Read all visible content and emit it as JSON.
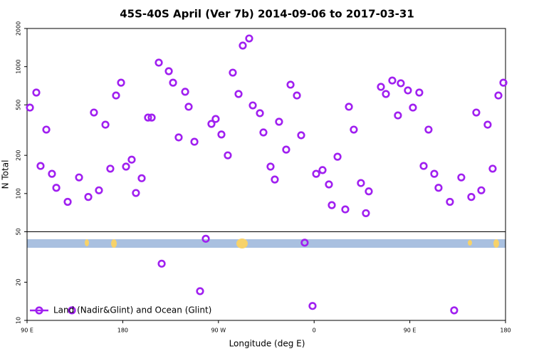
{
  "chart_data": {
    "type": "scatter",
    "title": "45S-40S April (Ver 7b)   2014-09-06 to 2017-03-31",
    "x_label": "Longitude (deg E)",
    "y_label": "N Total",
    "log_y": true,
    "xlim": [
      90,
      540
    ],
    "ylim": [
      10,
      2000
    ],
    "xticks": [
      {
        "value": 90,
        "label": "90 E"
      },
      180,
      {
        "value": 270,
        "label": "90 W"
      },
      {
        "value": 360,
        "label": "0"
      },
      {
        "value": 450,
        "label": "90 E"
      },
      {
        "value": 540,
        "label": "180"
      }
    ],
    "yticks": [
      10,
      20,
      50,
      100,
      200,
      500,
      1000,
      2000
    ],
    "legend": "bottom-left",
    "x": [
      92.7,
      98.7,
      102.7,
      108.1,
      113.4,
      117.5,
      128.2,
      132.2,
      138.9,
      147.6,
      152.9,
      157.6,
      163.7,
      168.3,
      173.7,
      178.4,
      183.1,
      188.4,
      192.4,
      197.8,
      203.8,
      207.2,
      213.9,
      216.6,
      223.3,
      227.3,
      232.6,
      238.7,
      242.0,
      247.4,
      252.7,
      258.1,
      263.4,
      267.4,
      272.8,
      278.8,
      283.5,
      288.9,
      292.9,
      298.9,
      302.3,
      309.0,
      312.3,
      319.0,
      323.0,
      327.0,
      333.7,
      337.8,
      343.8,
      347.8,
      351.1,
      358.5,
      361.9,
      367.9,
      373.9,
      376.6,
      382.0,
      389.3,
      392.7,
      397.3,
      404.0,
      408.7,
      411.4,
      422.8,
      427.5,
      433.5,
      438.8,
      441.5,
      448.2,
      452.9,
      458.9,
      463.0,
      467.6,
      473.0,
      477.0,
      487.7,
      491.7,
      498.4,
      507.8,
      512.5,
      517.2,
      523.2,
      527.9,
      533.3,
      538.0
    ],
    "series": [
      {
        "name": "Land (Nadir&Glint) and Ocean (Glint)",
        "color": "#a020f0",
        "values": [
          476,
          625,
          165,
          319,
          143,
          111,
          86,
          12,
          134,
          94,
          435,
          106,
          349,
          157,
          593,
          748,
          163,
          185,
          101,
          132,
          397,
          397,
          1076,
          28,
          921,
          748,
          277,
          634,
          483,
          256,
          17,
          44,
          354,
          387,
          292,
          200,
          897,
          609,
          1466,
          1668,
          495,
          430,
          303,
          163,
          129,
          368,
          222,
          721,
          593,
          288,
          41,
          13,
          143,
          153,
          118,
          81,
          195,
          75,
          483,
          319,
          121,
          70,
          104,
          693,
          609,
          778,
          413,
          740,
          650,
          476,
          625,
          165,
          319,
          143,
          111,
          86,
          12,
          134,
          94,
          435,
          106,
          349,
          157,
          593,
          748
        ]
      }
    ]
  }
}
